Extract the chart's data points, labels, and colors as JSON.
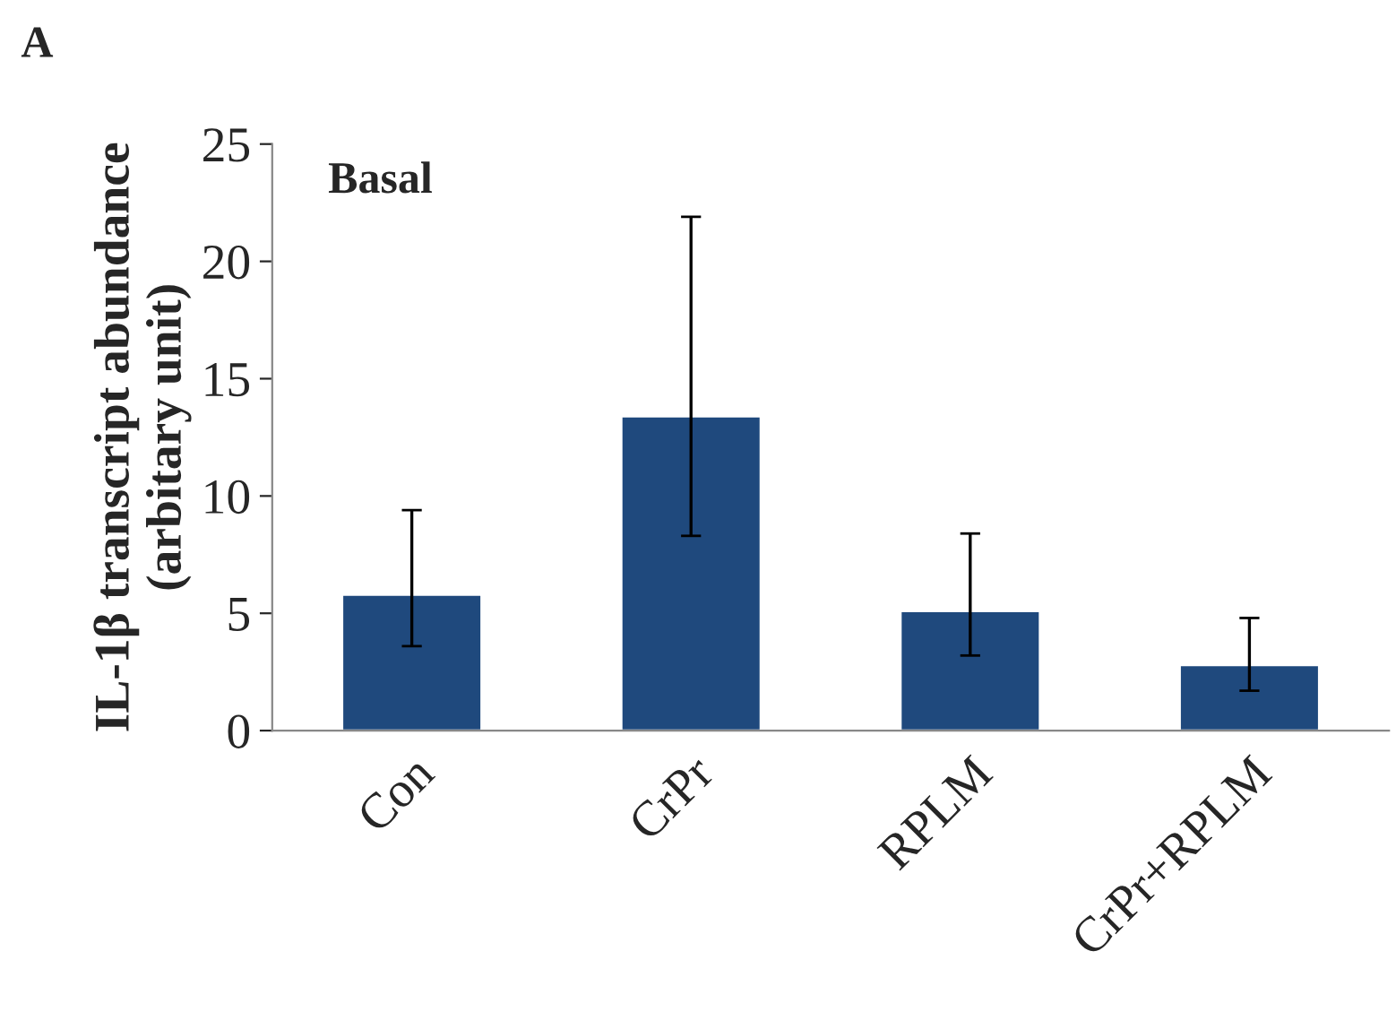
{
  "chart_data": {
    "type": "bar",
    "title": "Basal",
    "ylabel": "IL-1β transcript abundance\n(arbitary unit)",
    "annotations": [
      "A"
    ],
    "categories": [
      "Con",
      "CrPr",
      "RPLM",
      "CrPr+RPLM"
    ],
    "values": [
      5.8,
      13.4,
      5.1,
      2.8
    ],
    "color": "#1f497d",
    "errors": [
      [
        3.6,
        9.4
      ],
      [
        8.3,
        21.9
      ],
      [
        3.2,
        8.4
      ],
      [
        1.7,
        4.8
      ]
    ],
    "ylim": [
      0,
      25
    ],
    "yticks": [
      0,
      5,
      10,
      15,
      20,
      25
    ],
    "grid": false,
    "legend": false
  }
}
